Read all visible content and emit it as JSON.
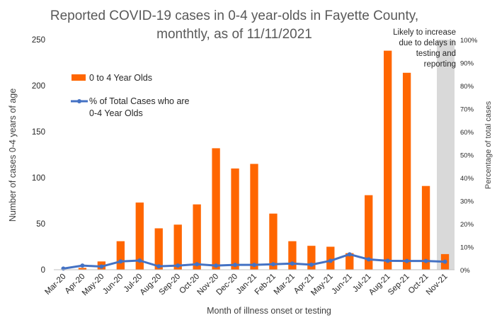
{
  "chart_data": {
    "type": "bar",
    "title_lines": [
      "Reported COVID-19 cases in 0-4 year-olds in Fayette County,",
      "monthtly, as of 11/11/2021"
    ],
    "xlabel": "Month of illness onset or testing",
    "ylabel": "Number of cases 0-4 years of age",
    "y2label": "Percentage of total cases",
    "ylim": [
      0,
      250
    ],
    "y_ticks": [
      "0",
      "50",
      "100",
      "150",
      "200",
      "250"
    ],
    "y2lim": [
      0,
      100
    ],
    "y2_ticks": [
      "0%",
      "10%",
      "20%",
      "30%",
      "40%",
      "50%",
      "60%",
      "70%",
      "80%",
      "90%",
      "100%"
    ],
    "categories": [
      "Mar-20",
      "Apr-20",
      "May-20",
      "Jun-20",
      "Jul-20",
      "Aug-20",
      "Sep-20",
      "Oct-20",
      "Nov-20",
      "Dec-20",
      "Jan-21",
      "Feb-21",
      "Mar-21",
      "Apr-21",
      "May-21",
      "Jun-21",
      "Jul-21",
      "Aug-21",
      "Sep-21",
      "Oct-21",
      "Nov-21"
    ],
    "series": [
      {
        "name": "0 to 4 Year Olds",
        "type": "bar",
        "axis": "left",
        "color": "#FF6600",
        "values": [
          0,
          2,
          9,
          31,
          73,
          45,
          49,
          71,
          132,
          110,
          115,
          61,
          31,
          26,
          25,
          18,
          81,
          238,
          214,
          91,
          17
        ]
      },
      {
        "name": "% of Total Cases who are 0-4 Year Olds",
        "legend_lines": [
          "% of Total Cases who are",
          "0-4 Year Olds"
        ],
        "type": "line",
        "axis": "right",
        "color": "#4472C4",
        "values": [
          0.5,
          1.8,
          1.4,
          3.6,
          4.0,
          1.5,
          1.8,
          2.4,
          1.8,
          2.1,
          2.1,
          2.4,
          2.7,
          2.2,
          3.9,
          6.7,
          4.5,
          3.9,
          3.8,
          3.8,
          3.5
        ]
      }
    ],
    "annotation": {
      "lines": [
        "Likely to increase",
        "due to delays in",
        "testing and",
        "reporting"
      ],
      "shade_color": "#D9D9D9",
      "applies_to": "Nov-21"
    },
    "grid": false,
    "legend_position": "top-left"
  }
}
